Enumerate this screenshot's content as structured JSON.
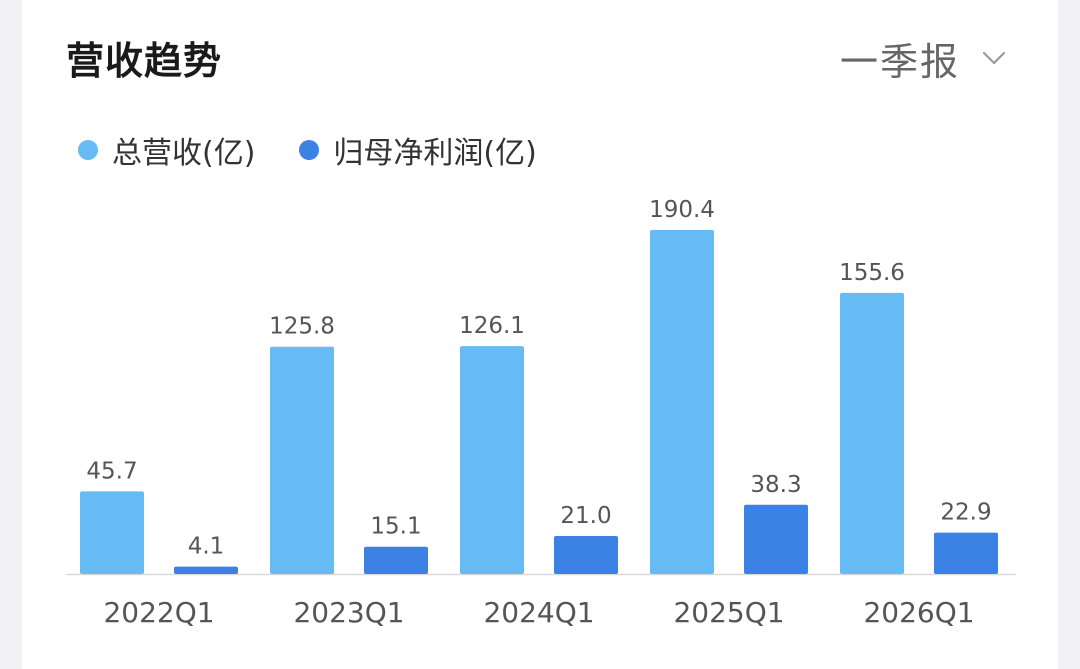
{
  "header": {
    "title": "营收趋势",
    "period_label": "一季报",
    "period_icon": "chevron-down-icon"
  },
  "colors": {
    "revenue": "#66bbf5",
    "net_profit": "#3b82e4",
    "axis": "#d9d9d9",
    "label": "#555555"
  },
  "chart_data": {
    "type": "bar",
    "categories": [
      "2022Q1",
      "2023Q1",
      "2024Q1",
      "2025Q1",
      "2026Q1"
    ],
    "series": [
      {
        "name": "总营收(亿)",
        "values": [
          45.7,
          125.8,
          126.1,
          190.4,
          155.6
        ]
      },
      {
        "name": "归母净利润(亿)",
        "values": [
          4.1,
          15.1,
          21.0,
          38.3,
          22.9
        ]
      }
    ],
    "value_labels": [
      [
        "45.7",
        "125.8",
        "126.1",
        "190.4",
        "155.6"
      ],
      [
        "4.1",
        "15.1",
        "21.0",
        "38.3",
        "22.9"
      ]
    ],
    "ylim": [
      0,
      190.4
    ],
    "grid": false,
    "legend_position": "top-left"
  }
}
